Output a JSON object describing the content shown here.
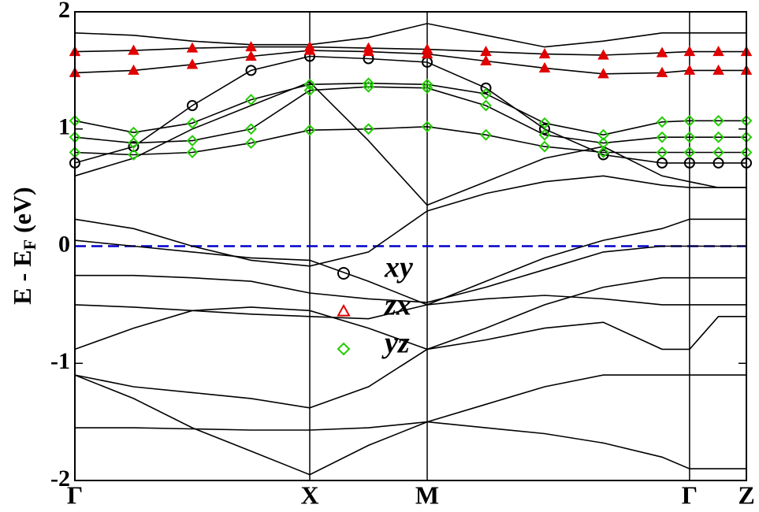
{
  "chart_data": {
    "type": "band-structure",
    "y_label": {
      "main": "E - E",
      "sub": "F",
      "tail": " (eV)"
    },
    "x": [
      0,
      0.25,
      0.5,
      0.75,
      1,
      1.25,
      1.5,
      1.75,
      2,
      2.25,
      2.5,
      2.617,
      2.74,
      2.859
    ],
    "xlim": [
      0,
      2.859
    ],
    "xticks": [
      {
        "value": 0,
        "label": "Γ"
      },
      {
        "value": 1,
        "label": "X"
      },
      {
        "value": 1.5,
        "label": "M"
      },
      {
        "value": 2.617,
        "label": "Γ"
      },
      {
        "value": 2.859,
        "label": "Z"
      }
    ],
    "ylim": [
      -2,
      2
    ],
    "yticks": [
      -2,
      -1,
      0,
      1,
      2
    ],
    "fermi_level": 0,
    "fermi_color": "#0000cc",
    "band_color": "#000000",
    "grid": true,
    "series": [
      {
        "name": "xy",
        "color": "#000000",
        "marker": "circle",
        "bands": [
          [
            0.71,
            0.85,
            1.2,
            1.5,
            1.62,
            1.6,
            1.57,
            1.35,
            1.0,
            0.78,
            0.71,
            0.71,
            0.71,
            0.71
          ]
        ]
      },
      {
        "name": "zx",
        "color": "#e00000",
        "marker": "triangle",
        "bands": [
          [
            1.66,
            1.67,
            1.69,
            1.7,
            1.7,
            1.69,
            1.68,
            1.66,
            1.64,
            1.63,
            1.65,
            1.66,
            1.66,
            1.66
          ],
          [
            1.48,
            1.5,
            1.55,
            1.62,
            1.67,
            1.66,
            1.64,
            1.58,
            1.52,
            1.47,
            1.48,
            1.5,
            1.5,
            1.5
          ]
        ]
      },
      {
        "name": "yz",
        "color": "#22cc00",
        "marker": "diamond",
        "bands": [
          [
            1.07,
            0.97,
            1.05,
            1.25,
            1.38,
            1.39,
            1.38,
            1.3,
            1.05,
            0.95,
            1.06,
            1.07,
            1.07,
            1.07
          ],
          [
            0.93,
            0.88,
            0.9,
            1.0,
            1.33,
            1.36,
            1.35,
            1.2,
            0.95,
            0.88,
            0.93,
            0.93,
            0.93,
            0.93
          ],
          [
            0.8,
            0.78,
            0.8,
            0.88,
            0.99,
            1.0,
            1.02,
            0.95,
            0.85,
            0.8,
            0.8,
            0.8,
            0.8,
            0.8
          ]
        ]
      }
    ],
    "other_bands": [
      [
        1.82,
        1.8,
        1.75,
        1.72,
        1.72,
        1.78,
        1.9,
        1.8,
        1.7,
        1.75,
        1.82,
        1.82,
        1.82,
        1.82
      ],
      [
        0.6,
        0.75,
        1.0,
        1.2,
        1.4,
        0.9,
        0.35,
        0.55,
        0.75,
        0.85,
        0.6,
        0.55,
        0.5,
        0.5
      ],
      [
        0.23,
        0.15,
        0.0,
        -0.12,
        -0.17,
        -0.05,
        0.3,
        0.45,
        0.55,
        0.6,
        0.52,
        0.5,
        0.5,
        0.5
      ],
      [
        0.05,
        0.0,
        -0.05,
        -0.1,
        -0.12,
        -0.3,
        -0.5,
        -0.3,
        -0.1,
        0.05,
        0.15,
        0.23,
        0.23,
        0.23
      ],
      [
        -0.25,
        -0.25,
        -0.27,
        -0.3,
        -0.4,
        -0.45,
        -0.48,
        -0.35,
        -0.2,
        -0.05,
        0.0,
        0.0,
        0.0,
        0.0
      ],
      [
        -0.5,
        -0.52,
        -0.55,
        -0.58,
        -0.6,
        -0.62,
        -0.5,
        -0.45,
        -0.42,
        -0.45,
        -0.5,
        -0.5,
        -0.5,
        -0.5
      ],
      [
        -0.88,
        -0.7,
        -0.55,
        -0.52,
        -0.55,
        -0.7,
        -0.88,
        -0.7,
        -0.5,
        -0.35,
        -0.27,
        -0.27,
        -0.27,
        -0.27
      ],
      [
        -1.1,
        -1.2,
        -1.25,
        -1.3,
        -1.38,
        -1.2,
        -0.88,
        -0.8,
        -0.7,
        -0.65,
        -0.88,
        -0.88,
        -0.6,
        -0.6
      ],
      [
        -1.1,
        -1.3,
        -1.55,
        -1.75,
        -1.95,
        -1.7,
        -1.5,
        -1.35,
        -1.2,
        -1.1,
        -1.1,
        -1.1,
        -1.1,
        -1.1
      ],
      [
        -1.55,
        -1.55,
        -1.56,
        -1.57,
        -1.57,
        -1.55,
        -1.5,
        -1.55,
        -1.6,
        -1.68,
        -1.8,
        -1.9,
        -1.9,
        -1.9
      ]
    ]
  }
}
